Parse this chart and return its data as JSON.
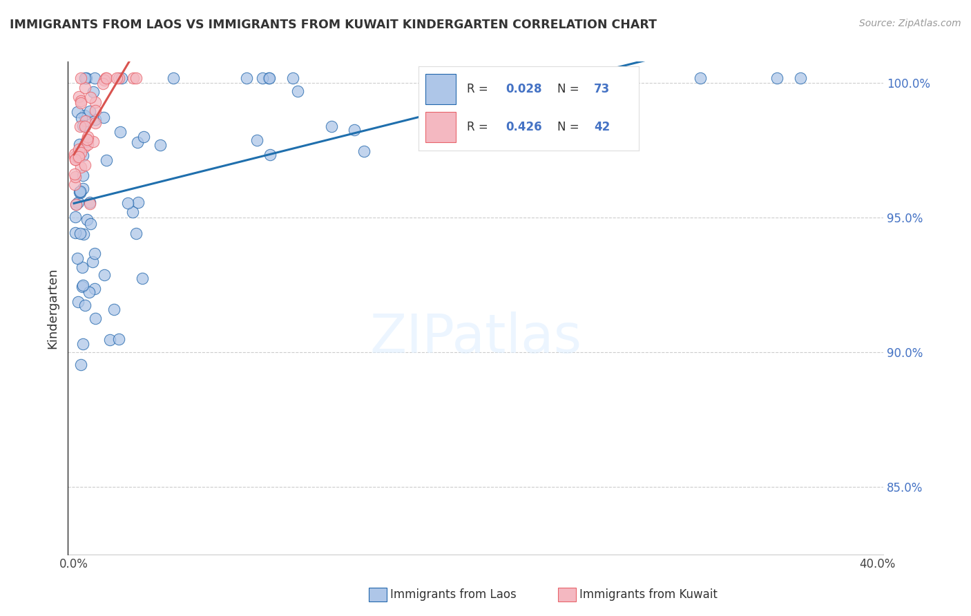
{
  "title": "IMMIGRANTS FROM LAOS VS IMMIGRANTS FROM KUWAIT KINDERGARTEN CORRELATION CHART",
  "source": "Source: ZipAtlas.com",
  "ylabel": "Kindergarten",
  "color_laos": "#aec6e8",
  "color_laos_edge": "#2166ac",
  "color_kuwait": "#f4b8c1",
  "color_kuwait_edge": "#e8636a",
  "line_color_laos": "#1f6fad",
  "line_color_kuwait": "#d9534f",
  "R_laos": "0.028",
  "N_laos": "73",
  "R_kuwait": "0.426",
  "N_kuwait": "42",
  "xmin": 0.0,
  "xmax": 0.4,
  "ymin": 0.825,
  "ymax": 1.008,
  "yticks": [
    0.85,
    0.9,
    0.95,
    1.0
  ],
  "ytick_labels": [
    "85.0%",
    "90.0%",
    "95.0%",
    "100.0%"
  ],
  "label_laos": "Immigrants from Laos",
  "label_kuwait": "Immigrants from Kuwait",
  "watermark_color": "#ddeeff"
}
